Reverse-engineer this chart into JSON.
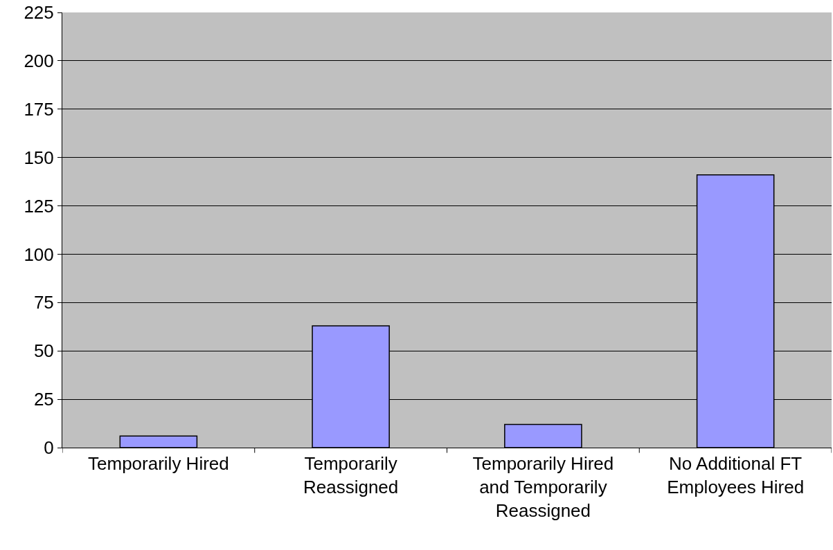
{
  "chart_data": {
    "type": "bar",
    "categories": [
      "Temporarily Hired",
      "Temporarily Reassigned",
      "Temporarily Hired and Temporarily Reassigned",
      "No Additional FT Employees Hired"
    ],
    "values": [
      6,
      63,
      12,
      141
    ],
    "color": "#9999ff",
    "ylim": [
      0,
      225
    ],
    "yticks": [
      0,
      25,
      50,
      75,
      100,
      125,
      150,
      175,
      200,
      225
    ],
    "grid": "y",
    "legend": false
  }
}
